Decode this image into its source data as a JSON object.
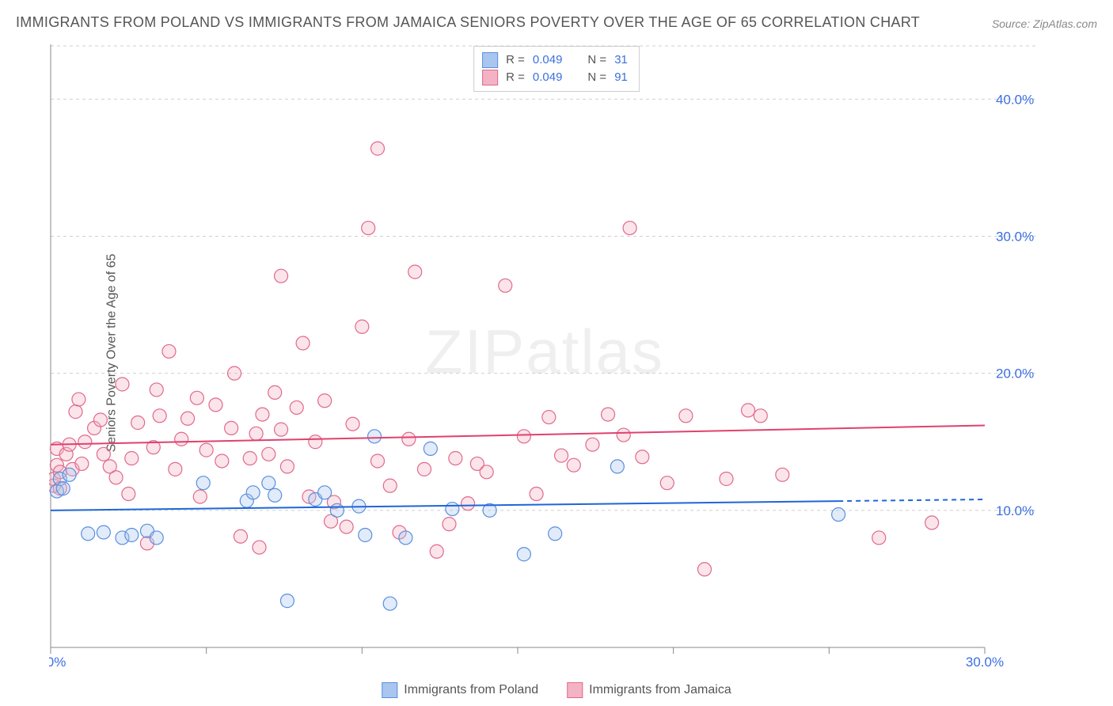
{
  "title": "IMMIGRANTS FROM POLAND VS IMMIGRANTS FROM JAMAICA SENIORS POVERTY OVER THE AGE OF 65 CORRELATION CHART",
  "source_label": "Source:",
  "source_name": "ZipAtlas.com",
  "watermark": "ZIPatlas",
  "y_axis_label": "Seniors Poverty Over the Age of 65",
  "chart": {
    "type": "scatter",
    "xlim": [
      0,
      30
    ],
    "ylim": [
      0,
      44
    ],
    "y_ticks": [
      10,
      20,
      30,
      40
    ],
    "y_tick_labels": [
      "10.0%",
      "20.0%",
      "30.0%",
      "40.0%"
    ],
    "y_tick_label_side": "right",
    "x_ticks": [
      0,
      5,
      10,
      15,
      20,
      25,
      30
    ],
    "x_tick_labels_shown": {
      "0": "0.0%",
      "30": "30.0%"
    },
    "background_color": "#ffffff",
    "grid_color": "#cfcfcf",
    "grid_dash": "4 4",
    "axis_color": "#888888",
    "marker_radius": 8.5,
    "marker_stroke_width": 1.2,
    "marker_fill_opacity": 0.35,
    "series": [
      {
        "id": "poland",
        "label": "Immigrants from Poland",
        "color_stroke": "#5a8fe0",
        "color_fill": "#a9c6ef",
        "trend_color": "#1e66d8",
        "trend_y_start": 10.0,
        "trend_y_end": 10.8,
        "trend_dash_from_x": 25.3,
        "R": "0.049",
        "N": "31",
        "points": [
          [
            0.2,
            11.4
          ],
          [
            0.3,
            12.3
          ],
          [
            0.4,
            11.6
          ],
          [
            0.6,
            12.6
          ],
          [
            1.2,
            8.3
          ],
          [
            1.7,
            8.4
          ],
          [
            2.3,
            8.0
          ],
          [
            2.6,
            8.2
          ],
          [
            3.1,
            8.5
          ],
          [
            3.4,
            8.0
          ],
          [
            4.9,
            12.0
          ],
          [
            6.3,
            10.7
          ],
          [
            6.5,
            11.3
          ],
          [
            7.0,
            12.0
          ],
          [
            7.2,
            11.1
          ],
          [
            7.6,
            3.4
          ],
          [
            8.5,
            10.8
          ],
          [
            8.8,
            11.3
          ],
          [
            9.2,
            10.0
          ],
          [
            9.9,
            10.3
          ],
          [
            10.1,
            8.2
          ],
          [
            10.4,
            15.4
          ],
          [
            10.9,
            3.2
          ],
          [
            11.4,
            8.0
          ],
          [
            12.2,
            14.5
          ],
          [
            12.9,
            10.1
          ],
          [
            14.1,
            10.0
          ],
          [
            15.2,
            6.8
          ],
          [
            16.2,
            8.3
          ],
          [
            18.2,
            13.2
          ],
          [
            25.3,
            9.7
          ]
        ]
      },
      {
        "id": "jamaica",
        "label": "Immigrants from Jamaica",
        "color_stroke": "#e06a8a",
        "color_fill": "#f4b3c4",
        "trend_color": "#e0416e",
        "trend_y_start": 14.8,
        "trend_y_end": 16.2,
        "trend_dash_from_x": null,
        "R": "0.049",
        "N": "91",
        "points": [
          [
            0.1,
            11.8
          ],
          [
            0.1,
            12.3
          ],
          [
            0.2,
            14.5
          ],
          [
            0.2,
            13.3
          ],
          [
            0.3,
            11.6
          ],
          [
            0.3,
            12.8
          ],
          [
            0.5,
            14.1
          ],
          [
            0.6,
            14.8
          ],
          [
            0.7,
            13.0
          ],
          [
            0.8,
            17.2
          ],
          [
            0.9,
            18.1
          ],
          [
            1.0,
            13.4
          ],
          [
            1.1,
            15.0
          ],
          [
            1.4,
            16.0
          ],
          [
            1.6,
            16.6
          ],
          [
            1.7,
            14.1
          ],
          [
            1.9,
            13.2
          ],
          [
            2.1,
            12.4
          ],
          [
            2.3,
            19.2
          ],
          [
            2.5,
            11.2
          ],
          [
            2.6,
            13.8
          ],
          [
            2.8,
            16.4
          ],
          [
            3.1,
            7.6
          ],
          [
            3.3,
            14.6
          ],
          [
            3.4,
            18.8
          ],
          [
            3.5,
            16.9
          ],
          [
            3.8,
            21.6
          ],
          [
            4.0,
            13.0
          ],
          [
            4.2,
            15.2
          ],
          [
            4.4,
            16.7
          ],
          [
            4.7,
            18.2
          ],
          [
            4.8,
            11.0
          ],
          [
            5.0,
            14.4
          ],
          [
            5.3,
            17.7
          ],
          [
            5.5,
            13.6
          ],
          [
            5.8,
            16.0
          ],
          [
            5.9,
            20.0
          ],
          [
            6.1,
            8.1
          ],
          [
            6.4,
            13.8
          ],
          [
            6.6,
            15.6
          ],
          [
            6.7,
            7.3
          ],
          [
            6.8,
            17.0
          ],
          [
            7.0,
            14.1
          ],
          [
            7.2,
            18.6
          ],
          [
            7.4,
            15.9
          ],
          [
            7.4,
            27.1
          ],
          [
            7.6,
            13.2
          ],
          [
            7.9,
            17.5
          ],
          [
            8.1,
            22.2
          ],
          [
            8.3,
            11.0
          ],
          [
            8.5,
            15.0
          ],
          [
            8.8,
            18.0
          ],
          [
            9.0,
            9.2
          ],
          [
            9.1,
            10.6
          ],
          [
            9.5,
            8.8
          ],
          [
            9.7,
            16.3
          ],
          [
            10.0,
            23.4
          ],
          [
            10.2,
            30.6
          ],
          [
            10.5,
            13.6
          ],
          [
            10.5,
            36.4
          ],
          [
            10.9,
            11.8
          ],
          [
            11.2,
            8.4
          ],
          [
            11.5,
            15.2
          ],
          [
            11.7,
            27.4
          ],
          [
            12.0,
            13.0
          ],
          [
            12.4,
            7.0
          ],
          [
            12.8,
            9.0
          ],
          [
            13.0,
            13.8
          ],
          [
            13.4,
            10.5
          ],
          [
            13.7,
            13.4
          ],
          [
            14.0,
            12.8
          ],
          [
            14.6,
            26.4
          ],
          [
            15.2,
            15.4
          ],
          [
            15.6,
            11.2
          ],
          [
            16.0,
            16.8
          ],
          [
            16.4,
            14.0
          ],
          [
            16.8,
            13.3
          ],
          [
            17.4,
            14.8
          ],
          [
            17.9,
            17.0
          ],
          [
            18.4,
            15.5
          ],
          [
            18.6,
            30.6
          ],
          [
            19.0,
            13.9
          ],
          [
            19.8,
            12.0
          ],
          [
            20.4,
            16.9
          ],
          [
            21.0,
            5.7
          ],
          [
            21.7,
            12.3
          ],
          [
            22.4,
            17.3
          ],
          [
            22.8,
            16.9
          ],
          [
            26.6,
            8.0
          ],
          [
            28.3,
            9.1
          ],
          [
            23.5,
            12.6
          ]
        ]
      }
    ]
  },
  "top_legend": {
    "R_label": "R =",
    "N_label": "N ="
  },
  "colors": {
    "tick_label": "#3b6fe0",
    "title": "#555555",
    "source": "#888888"
  }
}
